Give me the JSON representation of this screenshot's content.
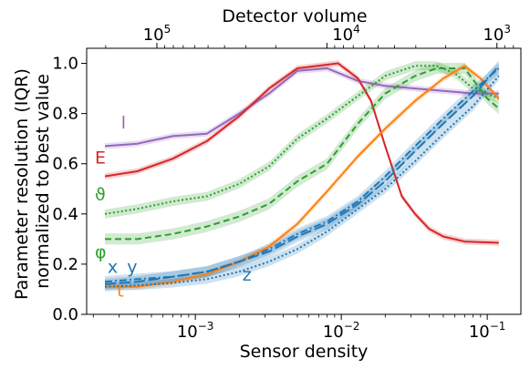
{
  "chart_data": {
    "type": "line",
    "xlabel": "Sensor density",
    "top_xlabel": "Detector volume",
    "ylabel_lines": [
      "Parameter resolution (IQR)",
      "normalized to best value"
    ],
    "x_scale": "log",
    "xlim": [
      0.00018,
      0.17
    ],
    "ylim": [
      0.0,
      1.06
    ],
    "grid": false,
    "x_ticks": [
      {
        "value": 0.001,
        "base": "10",
        "exp": "−3"
      },
      {
        "value": 0.01,
        "base": "10",
        "exp": "−2"
      },
      {
        "value": 0.1,
        "base": "10",
        "exp": "−1"
      }
    ],
    "y_ticks": [
      {
        "value": 0.0,
        "label": "0.0"
      },
      {
        "value": 0.2,
        "label": "0.2"
      },
      {
        "value": 0.4,
        "label": "0.4"
      },
      {
        "value": 0.6,
        "label": "0.6"
      },
      {
        "value": 0.8,
        "label": "0.8"
      },
      {
        "value": 1.0,
        "label": "1.0"
      }
    ],
    "top_ticks": [
      {
        "density": 0.000545,
        "base": "10",
        "exp": "5"
      },
      {
        "density": 0.0108,
        "base": "10",
        "exp": "4"
      },
      {
        "density": 0.1165,
        "base": "10",
        "exp": "3"
      }
    ],
    "series": [
      {
        "label": "l",
        "color": "#9467bd",
        "dash": "solid",
        "band": 0.012,
        "x": [
          0.00024,
          0.0004,
          0.0007,
          0.0012,
          0.002,
          0.0032,
          0.005,
          0.008,
          0.013,
          0.02,
          0.032,
          0.05,
          0.08,
          0.12
        ],
        "y": [
          0.67,
          0.68,
          0.71,
          0.72,
          0.8,
          0.88,
          0.97,
          0.98,
          0.93,
          0.91,
          0.9,
          0.89,
          0.88,
          0.88
        ]
      },
      {
        "label": "E",
        "color": "#d62728",
        "dash": "solid",
        "band": 0.012,
        "x": [
          0.00024,
          0.0004,
          0.0007,
          0.0012,
          0.002,
          0.0032,
          0.005,
          0.0095,
          0.013,
          0.016,
          0.02,
          0.026,
          0.032,
          0.04,
          0.05,
          0.07,
          0.12
        ],
        "y": [
          0.55,
          0.57,
          0.62,
          0.69,
          0.79,
          0.9,
          0.98,
          1.0,
          0.94,
          0.85,
          0.67,
          0.47,
          0.4,
          0.34,
          0.31,
          0.29,
          0.285
        ]
      },
      {
        "label": "θ",
        "color": "#2ca02c",
        "dash": "dotted",
        "band": 0.018,
        "x": [
          0.00024,
          0.0004,
          0.0007,
          0.0012,
          0.002,
          0.0032,
          0.005,
          0.008,
          0.013,
          0.02,
          0.032,
          0.045,
          0.06,
          0.08,
          0.12
        ],
        "y": [
          0.4,
          0.42,
          0.45,
          0.47,
          0.52,
          0.59,
          0.7,
          0.78,
          0.87,
          0.95,
          0.99,
          0.99,
          0.96,
          0.9,
          0.86
        ]
      },
      {
        "label": "φ",
        "color": "#2ca02c",
        "dash": "dashed",
        "band": 0.022,
        "x": [
          0.00024,
          0.0004,
          0.0007,
          0.0012,
          0.002,
          0.0032,
          0.005,
          0.008,
          0.013,
          0.02,
          0.032,
          0.045,
          0.07,
          0.1,
          0.12
        ],
        "y": [
          0.3,
          0.3,
          0.32,
          0.35,
          0.39,
          0.44,
          0.53,
          0.6,
          0.76,
          0.88,
          0.95,
          0.98,
          0.98,
          0.86,
          0.82
        ]
      },
      {
        "label": "t",
        "color": "#ff7f0e",
        "dash": "solid",
        "band": 0.012,
        "x": [
          0.00024,
          0.0004,
          0.0007,
          0.0012,
          0.002,
          0.0032,
          0.005,
          0.008,
          0.013,
          0.02,
          0.032,
          0.05,
          0.07,
          0.09,
          0.12
        ],
        "y": [
          0.11,
          0.11,
          0.13,
          0.16,
          0.21,
          0.27,
          0.36,
          0.49,
          0.63,
          0.74,
          0.85,
          0.94,
          0.99,
          0.94,
          0.86
        ]
      },
      {
        "label": "x",
        "color": "#1f77b4",
        "dash": "dashdot",
        "band": 0.022,
        "x": [
          0.00024,
          0.0004,
          0.0007,
          0.0012,
          0.002,
          0.0032,
          0.005,
          0.008,
          0.013,
          0.02,
          0.032,
          0.05,
          0.08,
          0.12
        ],
        "y": [
          0.13,
          0.14,
          0.15,
          0.17,
          0.21,
          0.26,
          0.32,
          0.37,
          0.45,
          0.55,
          0.67,
          0.78,
          0.89,
          0.98
        ]
      },
      {
        "label": "y",
        "color": "#1f77b4",
        "dash": "longdash",
        "band": 0.022,
        "x": [
          0.00024,
          0.0004,
          0.0007,
          0.0012,
          0.002,
          0.0032,
          0.005,
          0.008,
          0.013,
          0.02,
          0.032,
          0.05,
          0.08,
          0.12
        ],
        "y": [
          0.12,
          0.13,
          0.15,
          0.17,
          0.21,
          0.25,
          0.31,
          0.36,
          0.44,
          0.53,
          0.65,
          0.76,
          0.87,
          0.99
        ]
      },
      {
        "label": "z",
        "color": "#1f77b4",
        "dash": "dotted",
        "band": 0.018,
        "x": [
          0.00024,
          0.0004,
          0.0007,
          0.0012,
          0.002,
          0.0032,
          0.005,
          0.008,
          0.013,
          0.02,
          0.032,
          0.05,
          0.08,
          0.12
        ],
        "y": [
          0.11,
          0.115,
          0.125,
          0.14,
          0.17,
          0.21,
          0.26,
          0.33,
          0.42,
          0.5,
          0.61,
          0.72,
          0.83,
          0.95
        ]
      }
    ],
    "series_labels": [
      {
        "text": "l",
        "color": "#9467bd",
        "x": 0.00031,
        "y": 0.74
      },
      {
        "text": "E",
        "color": "#d62728",
        "x": 0.000205,
        "y": 0.6
      },
      {
        "text": "ϑ",
        "color": "#2ca02c",
        "x": 0.000205,
        "y": 0.455
      },
      {
        "text": "φ",
        "color": "#2ca02c",
        "x": 0.000205,
        "y": 0.225
      },
      {
        "text": "x",
        "color": "#1f77b4",
        "x": 0.00025,
        "y": 0.165
      },
      {
        "text": "y",
        "color": "#1f77b4",
        "x": 0.00034,
        "y": 0.165
      },
      {
        "text": "t",
        "color": "#ff7f0e",
        "x": 0.00029,
        "y": 0.07
      },
      {
        "text": "z",
        "color": "#1f77b4",
        "x": 0.0021,
        "y": 0.135
      }
    ]
  }
}
